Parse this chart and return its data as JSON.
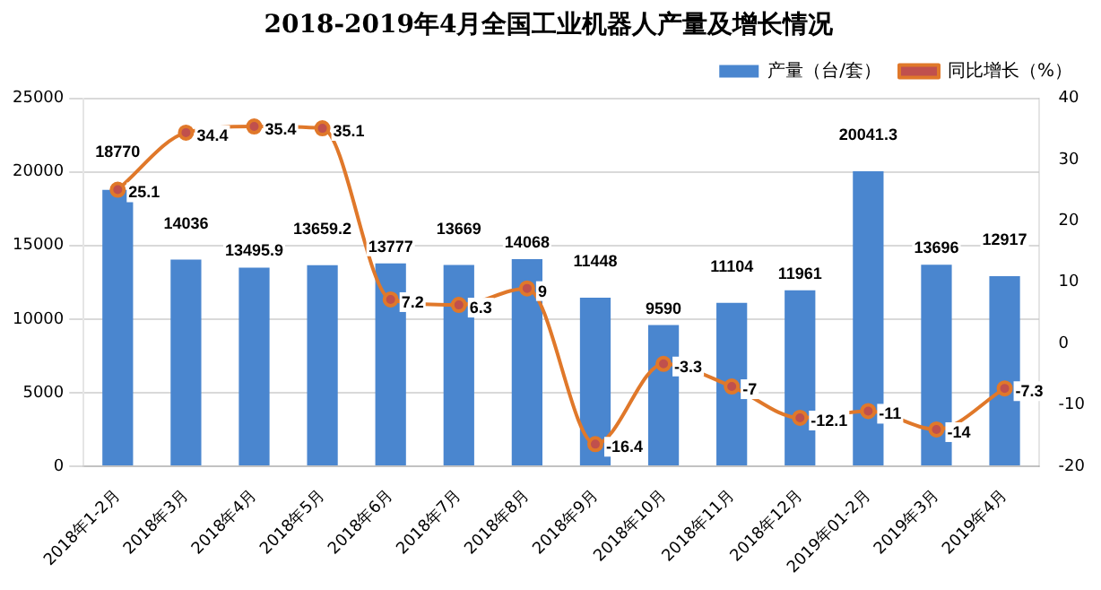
{
  "chart_data": {
    "type": "bar",
    "title": "2018-2019年4月全国工业机器人产量及增长情况",
    "categories": [
      "2018年1-2月",
      "2018年3月",
      "2018年4月",
      "2018年5月",
      "2018年6月",
      "2018年7月",
      "2018年8月",
      "2018年9月",
      "2018年10月",
      "2018年11月",
      "2018年12月",
      "2019年01-2月",
      "2019年3月",
      "2019年4月"
    ],
    "series": [
      {
        "name": "产量（台/套）",
        "color": "#4a86cf",
        "values": [
          18770,
          14036,
          13495.9,
          13659.2,
          13777,
          13669,
          14068,
          11448,
          9590,
          11104,
          11961,
          20041.3,
          13696,
          12917
        ]
      },
      {
        "name": "同比增长（%）",
        "type": "line",
        "axis": "y2",
        "color": "#e0782a",
        "values": [
          25.1,
          34.4,
          35.4,
          35.1,
          7.2,
          6.3,
          9,
          -16.4,
          -3.3,
          -7,
          -12.1,
          -11,
          -14,
          -7.3
        ]
      }
    ],
    "ylim": [
      0,
      25000
    ],
    "yticks": [
      0,
      5000,
      10000,
      15000,
      20000,
      25000
    ],
    "y2lim": [
      -20,
      40
    ],
    "y2ticks": [
      -20,
      -10,
      0,
      10,
      20,
      30,
      40
    ],
    "grid": "y",
    "legend": "top right",
    "marker": "circle",
    "line_style": "solid",
    "data_labels": true
  }
}
